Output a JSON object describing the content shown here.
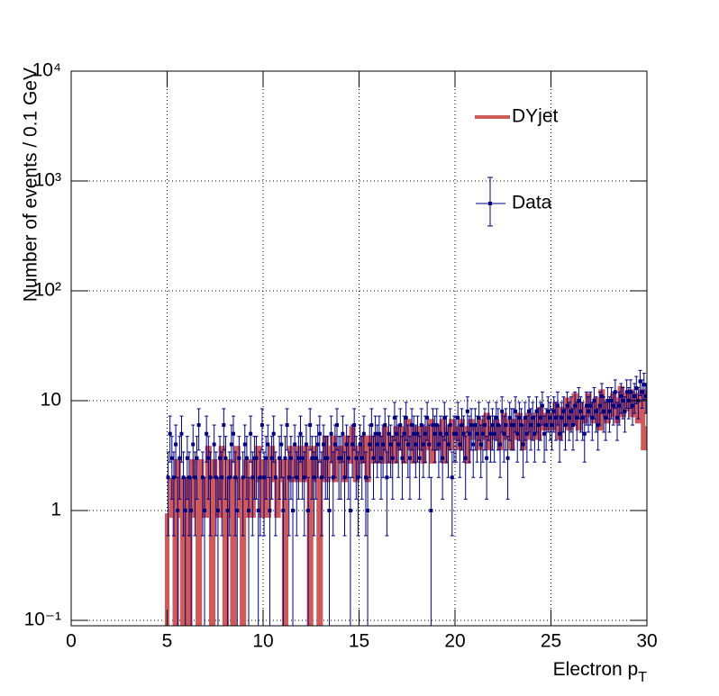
{
  "chart_data": {
    "type": "histogram",
    "x_label": {
      "text": "Electron p",
      "subscript": "T"
    },
    "y_label": "Number of events / 0.1 GeV",
    "log_y": true,
    "grid": true,
    "legend": "top-right",
    "xlim": [
      0,
      30
    ],
    "xticks": [
      0,
      5,
      10,
      15,
      20,
      25,
      30
    ],
    "ylim": [
      0.0893,
      10000
    ],
    "yticks": [
      {
        "value": 0.1,
        "label": "10⁻¹"
      },
      1,
      10,
      {
        "value": 100,
        "label": "10²"
      },
      {
        "value": 1000,
        "label": "10³"
      },
      {
        "value": 10000,
        "label": "10⁴"
      }
    ],
    "bins": [
      0,
      5,
      5.1,
      5.2,
      5.3,
      5.4,
      5.5,
      5.6,
      5.7,
      5.8,
      5.9,
      6,
      6.1,
      6.2,
      6.3,
      6.4,
      6.5,
      6.6,
      6.7,
      6.8,
      6.9,
      7,
      7.1,
      7.2,
      7.3,
      7.4,
      7.5,
      7.6,
      7.7,
      7.8,
      7.9,
      8,
      8.1,
      8.2,
      8.3,
      8.4,
      8.5,
      8.6,
      8.7,
      8.8,
      8.9,
      9,
      9.1,
      9.2,
      9.3,
      9.4,
      9.5,
      9.6,
      9.7,
      9.8,
      9.9,
      10,
      10.1,
      10.2,
      10.3,
      10.4,
      10.5,
      10.6,
      10.7,
      10.8,
      10.9,
      11,
      11.1,
      11.2,
      11.3,
      11.4,
      11.5,
      11.6,
      11.7,
      11.8,
      11.9,
      12,
      12.1,
      12.2,
      12.3,
      12.4,
      12.5,
      12.6,
      12.7,
      12.8,
      12.9,
      13,
      13.1,
      13.2,
      13.3,
      13.4,
      13.5,
      13.6,
      13.7,
      13.8,
      13.9,
      14,
      14.1,
      14.2,
      14.3,
      14.4,
      14.5,
      14.6,
      14.7,
      14.8,
      14.9,
      15,
      15.1,
      15.2,
      15.3,
      15.4,
      15.5,
      15.6,
      15.7,
      15.8,
      15.9,
      16,
      16.1,
      16.2,
      16.3,
      16.4,
      16.5,
      16.6,
      16.7,
      16.8,
      16.9,
      17,
      17.1,
      17.2,
      17.3,
      17.4,
      17.5,
      17.6,
      17.7,
      17.8,
      17.9,
      18,
      18.1,
      18.2,
      18.3,
      18.4,
      18.5,
      18.6,
      18.7,
      18.8,
      18.9,
      19,
      19.1,
      19.2,
      19.3,
      19.4,
      19.5,
      19.6,
      19.7,
      19.8,
      19.9,
      20,
      20.1,
      20.2,
      20.3,
      20.4,
      20.5,
      20.6,
      20.7,
      20.8,
      20.9,
      21,
      21.1,
      21.2,
      21.3,
      21.4,
      21.5,
      21.6,
      21.7,
      21.8,
      21.9,
      22,
      22.1,
      22.2,
      22.3,
      22.4,
      22.5,
      22.6,
      22.7,
      22.8,
      22.9,
      23,
      23.1,
      23.2,
      23.3,
      23.4,
      23.5,
      23.6,
      23.7,
      23.8,
      23.9,
      24,
      24.1,
      24.2,
      24.3,
      24.4,
      24.5,
      24.6,
      24.7,
      24.8,
      24.9,
      25,
      25.1,
      25.2,
      25.3,
      25.4,
      25.5,
      25.6,
      25.7,
      25.8,
      25.9,
      26,
      26.1,
      26.2,
      26.3,
      26.4,
      26.5,
      26.6,
      26.7,
      26.8,
      26.9,
      27,
      27.1,
      27.2,
      27.3,
      27.4,
      27.5,
      27.6,
      27.7,
      27.8,
      27.9,
      28,
      28.1,
      28.2,
      28.3,
      28.4,
      28.5,
      28.6,
      28.7,
      28.8,
      28.9,
      29,
      29.1,
      29.2,
      29.3,
      29.4,
      29.5,
      29.6,
      29.7,
      29.8,
      29.9,
      30
    ],
    "series": [
      {
        "name": "DYjet",
        "color": "#d05a5a",
        "values": [
          0,
          0.9,
          0.9,
          1.9,
          0.9,
          0,
          2.8,
          1.9,
          0.9,
          0,
          1.9,
          0.9,
          0,
          1.9,
          2.8,
          0.9,
          1.9,
          0,
          2.8,
          1.9,
          0.9,
          1.9,
          3.7,
          0.9,
          0,
          2.8,
          1.9,
          0.9,
          1.9,
          3.7,
          0.9,
          0,
          1.9,
          2.8,
          0.9,
          0,
          1.9,
          3.7,
          1.9,
          0.9,
          0,
          1.9,
          2.8,
          0.9,
          1.9,
          0.9,
          2.8,
          1.9,
          3.7,
          1.9,
          0.9,
          2.8,
          1.9,
          0.9,
          1.9,
          3.7,
          2.8,
          1.9,
          0.9,
          1.9,
          2.8,
          1.9,
          0,
          2.8,
          1.9,
          3.7,
          2.8,
          1.9,
          2.8,
          3.7,
          1.9,
          2.8,
          1.9,
          3.7,
          2.8,
          0,
          1.9,
          3.7,
          2.8,
          1.9,
          0,
          1.9,
          2.8,
          4.6,
          1.9,
          3.7,
          2.8,
          4.6,
          1.9,
          2.8,
          3.7,
          2.8,
          3.7,
          1.9,
          4.6,
          2.8,
          3.7,
          5.6,
          2.8,
          1.9,
          3.7,
          3.7,
          2.8,
          4.6,
          3.7,
          1.9,
          4.6,
          2.8,
          3.7,
          4.6,
          2.8,
          3.7,
          4.6,
          2.8,
          5.6,
          3.7,
          2.8,
          4.6,
          3.7,
          2.8,
          5.6,
          4.6,
          3.7,
          5.6,
          2.8,
          4.6,
          6.5,
          3.7,
          4.6,
          2.8,
          5.6,
          3.7,
          5.6,
          4.6,
          2.8,
          5.6,
          4.6,
          3.7,
          6.5,
          2.8,
          4.6,
          5.6,
          3.7,
          4.6,
          6.5,
          2.8,
          4.6,
          5.6,
          3.7,
          6.5,
          4.6,
          4.6,
          5.6,
          3.7,
          6.5,
          4.6,
          5.6,
          2.8,
          4.6,
          6.5,
          5.6,
          5.6,
          4.6,
          3.7,
          6.5,
          5.6,
          4.6,
          7.4,
          3.7,
          5.6,
          4.6,
          4.6,
          6.5,
          5.6,
          3.7,
          5.6,
          7.4,
          4.6,
          5.6,
          6.5,
          3.7,
          5.6,
          6.5,
          4.6,
          7.4,
          5.6,
          3.7,
          6.5,
          5.6,
          7.4,
          4.6,
          6.5,
          5.6,
          7.4,
          4.6,
          8.4,
          5.6,
          6.5,
          7.4,
          5.6,
          6.5,
          7.4,
          5.6,
          9.3,
          6.5,
          4.6,
          8.4,
          6.5,
          7.4,
          10.2,
          5.6,
          8.4,
          6.5,
          11.2,
          7.4,
          5.6,
          9.3,
          7.4,
          6.5,
          8.4,
          11.2,
          7.4,
          9.3,
          6.5,
          10.2,
          8.4,
          5.6,
          12.1,
          7.4,
          9.3,
          6.5,
          9.3,
          7.4,
          11.2,
          8.4,
          6.5,
          10.2,
          13.0,
          7.4,
          9.3,
          11.2,
          8.4,
          12.1,
          7.4,
          10.2,
          11.2,
          6.5,
          9.3,
          12.1,
          3.7,
          5.6
        ]
      },
      {
        "name": "Data",
        "color": "#000080",
        "values": [
          null,
          2,
          5,
          3,
          2,
          4,
          1,
          3,
          5,
          2,
          1,
          3,
          2,
          1,
          4,
          2,
          3,
          6,
          null,
          2,
          1,
          5,
          3,
          2,
          null,
          4,
          2,
          1,
          3,
          2,
          6,
          3,
          1,
          2,
          4,
          5,
          2,
          1,
          3,
          null,
          2,
          4,
          3,
          1,
          5,
          2,
          3,
          3,
          1,
          2,
          6,
          2,
          3,
          4,
          1,
          3,
          5,
          2,
          null,
          3,
          4,
          1,
          3,
          6,
          2,
          3,
          1,
          4,
          2,
          3,
          5,
          3,
          2,
          4,
          1,
          6,
          3,
          2,
          3,
          4,
          5,
          2,
          4,
          3,
          3,
          1,
          5,
          2,
          4,
          6,
          3,
          3,
          5,
          2,
          4,
          3,
          1,
          4,
          6,
          3,
          2,
          4,
          3,
          5,
          2,
          1,
          4,
          6,
          3,
          5,
          4,
          5,
          3,
          4,
          6,
          2,
          5,
          4,
          3,
          7,
          5,
          4,
          6,
          3,
          5,
          7,
          4,
          3,
          6,
          5,
          4,
          5,
          3,
          6,
          4,
          5,
          7,
          4,
          1,
          6,
          5,
          6,
          4,
          5,
          3,
          7,
          5,
          4,
          6,
          2,
          5,
          5,
          7,
          4,
          6,
          5,
          3,
          8,
          5,
          6,
          4,
          6,
          5,
          7,
          4,
          5,
          6,
          3,
          7,
          5,
          6,
          5,
          7,
          6,
          4,
          8,
          5,
          6,
          3,
          7,
          6,
          6,
          8,
          5,
          7,
          6,
          4,
          7,
          5,
          8,
          6,
          7,
          5,
          8,
          6,
          7,
          9,
          5,
          6,
          8,
          7,
          6,
          8,
          7,
          9,
          5,
          7,
          8,
          6,
          9,
          7,
          8,
          6,
          9,
          7,
          10,
          8,
          7,
          5,
          9,
          8,
          9,
          7,
          10,
          8,
          6,
          9,
          11,
          8,
          7,
          10,
          8,
          10,
          9,
          12,
          7,
          9,
          11,
          10,
          8,
          12,
          10,
          12,
          9,
          11,
          13,
          10,
          15,
          12,
          14,
          11
        ],
        "errors": [
          null,
          1.41,
          2.24,
          1.73,
          1.41,
          2,
          1,
          1.73,
          2.24,
          1.41,
          1,
          1.73,
          1.41,
          1,
          2,
          1.41,
          1.73,
          2.45,
          null,
          1.41,
          1,
          2.24,
          1.73,
          1.41,
          null,
          2,
          1.41,
          1,
          1.73,
          1.41,
          2.45,
          1.73,
          1,
          1.41,
          2,
          2.24,
          1.41,
          1,
          1.73,
          null,
          1.41,
          2,
          1.73,
          1,
          2.24,
          1.41,
          1.73,
          1.73,
          1,
          1.41,
          2.45,
          1.41,
          1.73,
          2,
          1,
          1.73,
          2.24,
          1.41,
          null,
          1.73,
          2,
          1,
          1.73,
          2.45,
          1.41,
          1.73,
          1,
          2,
          1.41,
          1.73,
          2.24,
          1.73,
          1.41,
          2,
          1,
          2.45,
          1.73,
          1.41,
          1.73,
          2,
          2.24,
          1.41,
          2,
          1.73,
          1.73,
          1,
          2.24,
          1.41,
          2,
          2.45,
          1.73,
          1.73,
          2.24,
          1.41,
          2,
          1.73,
          1,
          2,
          2.45,
          1.73,
          1.41,
          2,
          1.73,
          2.24,
          1.41,
          1,
          2,
          2.45,
          1.73,
          2.24,
          2,
          2.24,
          1.73,
          2,
          2.45,
          1.41,
          2.24,
          2,
          1.73,
          2.65,
          2.24,
          2,
          2.45,
          1.73,
          2.24,
          2.65,
          2,
          1.73,
          2.45,
          2.24,
          2,
          2.24,
          1.73,
          2.45,
          2,
          2.24,
          2.65,
          2,
          1,
          2.45,
          2.24,
          2.45,
          2,
          2.24,
          1.73,
          2.65,
          2.24,
          2,
          2.45,
          1.41,
          2.24,
          2.24,
          2.65,
          2,
          2.45,
          2.24,
          1.73,
          2.83,
          2.24,
          2.45,
          2,
          2.45,
          2.24,
          2.65,
          2,
          2.24,
          2.45,
          1.73,
          2.65,
          2.24,
          2.45,
          2.24,
          2.65,
          2.45,
          2,
          2.83,
          2.24,
          2.45,
          1.73,
          2.65,
          2.45,
          2.45,
          2.83,
          2.24,
          2.65,
          2.45,
          2,
          2.65,
          2.24,
          2.83,
          2.45,
          2.65,
          2.24,
          2.83,
          2.45,
          2.65,
          3,
          2.24,
          2.45,
          2.83,
          2.65,
          2.45,
          2.83,
          2.65,
          3,
          2.24,
          2.65,
          2.83,
          2.45,
          3,
          2.65,
          2.83,
          2.45,
          3,
          2.65,
          3.16,
          2.83,
          2.65,
          2.24,
          3,
          2.83,
          3,
          2.65,
          3.16,
          2.83,
          2.45,
          3,
          3.32,
          2.83,
          2.65,
          3.16,
          2.83,
          3.16,
          3,
          3.46,
          2.65,
          3,
          3.32,
          3.16,
          2.83,
          3.46,
          3.16,
          3.46,
          3,
          3.32,
          3.61,
          3.16,
          3.87,
          3.46,
          3.74,
          3.32
        ]
      }
    ]
  }
}
